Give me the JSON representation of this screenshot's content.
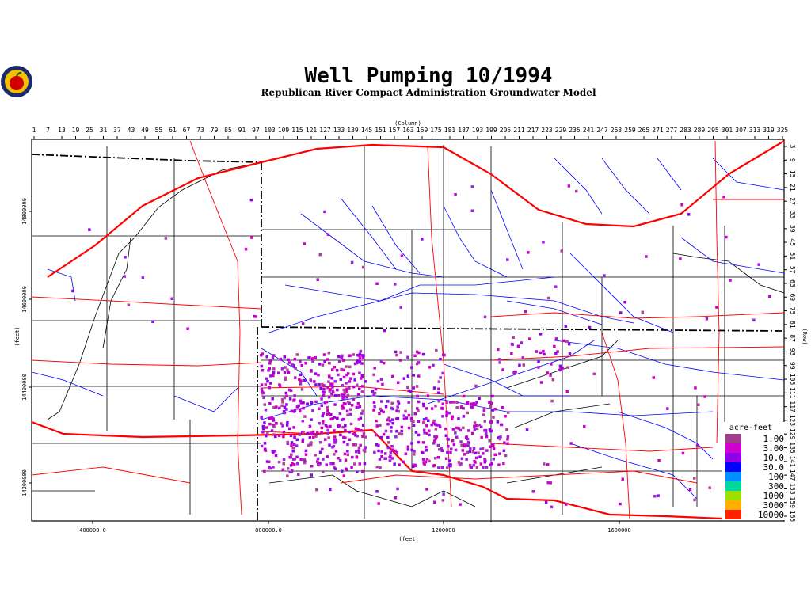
{
  "title": "Well Pumping 10/1994",
  "subtitle": "Republican River Compact Administration Groundwater Model",
  "top_axis": {
    "label": "(Column)",
    "ticks": [
      "1",
      "7",
      "13",
      "19",
      "25",
      "31",
      "37",
      "43",
      "49",
      "55",
      "61",
      "67",
      "73",
      "79",
      "85",
      "91",
      "97",
      "103",
      "109",
      "115",
      "121",
      "127",
      "133",
      "139",
      "145",
      "151",
      "157",
      "163",
      "169",
      "175",
      "181",
      "187",
      "193",
      "199",
      "205",
      "211",
      "217",
      "223",
      "229",
      "235",
      "241",
      "247",
      "253",
      "259",
      "265",
      "271",
      "277",
      "283",
      "289",
      "295",
      "301",
      "307",
      "313",
      "319",
      "325"
    ]
  },
  "right_axis": {
    "label": "(Row)",
    "ticks": [
      "3",
      "9",
      "15",
      "21",
      "27",
      "33",
      "39",
      "45",
      "51",
      "57",
      "63",
      "69",
      "75",
      "81",
      "87",
      "93",
      "99",
      "105",
      "111",
      "117",
      "123",
      "129",
      "135",
      "141",
      "147",
      "153",
      "159",
      "165"
    ]
  },
  "left_axis": {
    "label": "(feet)",
    "ticks": [
      "14800000",
      "14600000",
      "14400000",
      "14200000"
    ]
  },
  "bottom_axis": {
    "label": "(feet)",
    "ticks": [
      "400000.0",
      "800000.0",
      "1200000",
      "1600000"
    ]
  },
  "legend": {
    "title": "acre-feet",
    "items": [
      {
        "label": "1.00",
        "color": "#a0408c"
      },
      {
        "label": "3.00",
        "color": "#d000d0"
      },
      {
        "label": "10.0",
        "color": "#9000e8"
      },
      {
        "label": "30.0",
        "color": "#0000ff"
      },
      {
        "label": "100",
        "color": "#0090ff"
      },
      {
        "label": "300",
        "color": "#00d8a0"
      },
      {
        "label": "1000",
        "color": "#a0e000"
      },
      {
        "label": "3000",
        "color": "#ffb000"
      },
      {
        "label": "10000",
        "color": "#ff2000"
      }
    ]
  }
}
